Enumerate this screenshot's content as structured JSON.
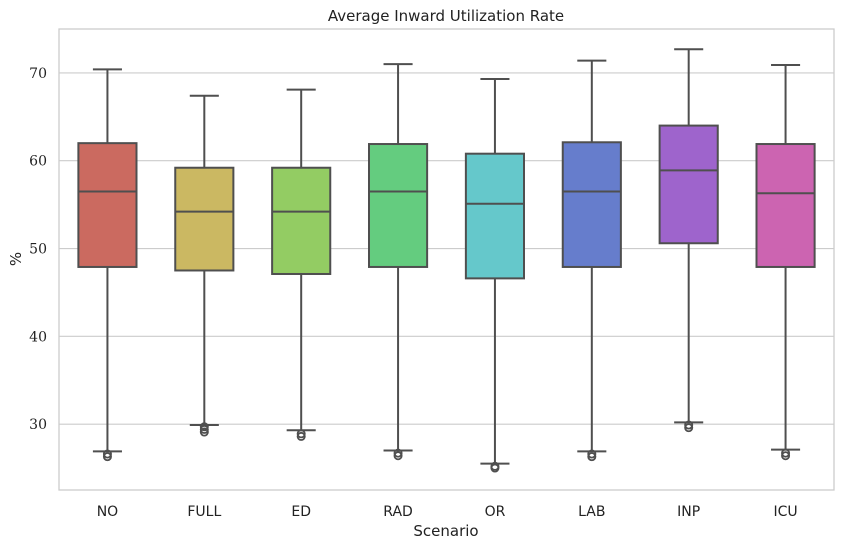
{
  "chart_data": {
    "type": "box",
    "title": "Average Inward Utilization Rate",
    "xlabel": "Scenario",
    "ylabel": "%",
    "ylim": [
      22.5,
      75
    ],
    "yticks": [
      "30",
      "40",
      "50",
      "60",
      "70"
    ],
    "grid": "horizontal",
    "series": [
      {
        "name": "NO",
        "color": "#cb6a60",
        "whisker_low": 26.9,
        "q1": 47.9,
        "median": 56.5,
        "q3": 62.0,
        "whisker_high": 70.4,
        "outliers": [
          26.3,
          26.6
        ]
      },
      {
        "name": "FULL",
        "color": "#cbb862",
        "whisker_low": 29.9,
        "q1": 47.5,
        "median": 54.2,
        "q3": 59.2,
        "whisker_high": 67.4,
        "outliers": [
          29.1,
          29.4,
          29.7
        ]
      },
      {
        "name": "ED",
        "color": "#93cc63",
        "whisker_low": 29.3,
        "q1": 47.1,
        "median": 54.2,
        "q3": 59.2,
        "whisker_high": 68.1,
        "outliers": [
          28.6,
          28.9
        ]
      },
      {
        "name": "RAD",
        "color": "#64cc7f",
        "whisker_low": 27.0,
        "q1": 47.9,
        "median": 56.5,
        "q3": 61.9,
        "whisker_high": 71.0,
        "outliers": [
          26.4,
          26.7
        ]
      },
      {
        "name": "OR",
        "color": "#65c8cb",
        "whisker_low": 25.5,
        "q1": 46.6,
        "median": 55.1,
        "q3": 60.8,
        "whisker_high": 69.3,
        "outliers": [
          25.0,
          25.2
        ]
      },
      {
        "name": "LAB",
        "color": "#667dcc",
        "whisker_low": 26.9,
        "q1": 47.9,
        "median": 56.5,
        "q3": 62.1,
        "whisker_high": 71.4,
        "outliers": [
          26.3,
          26.6
        ]
      },
      {
        "name": "INP",
        "color": "#9e64cc",
        "whisker_low": 30.2,
        "q1": 50.6,
        "median": 58.9,
        "q3": 64.0,
        "whisker_high": 72.7,
        "outliers": [
          29.6,
          29.9
        ]
      },
      {
        "name": "ICU",
        "color": "#cc64b1",
        "whisker_low": 27.1,
        "q1": 47.9,
        "median": 56.3,
        "q3": 61.9,
        "whisker_high": 70.9,
        "outliers": [
          26.4,
          26.7
        ]
      }
    ]
  }
}
